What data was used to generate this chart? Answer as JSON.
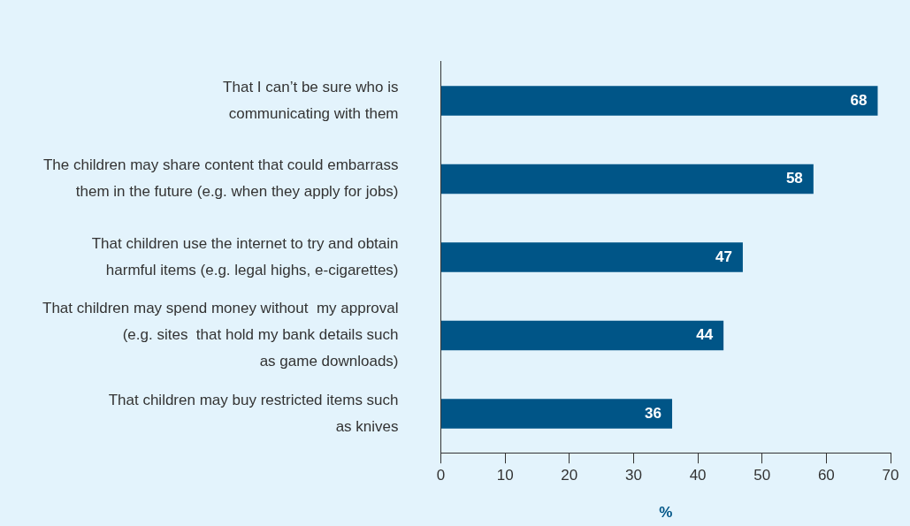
{
  "chart_data": {
    "type": "bar",
    "orientation": "horizontal",
    "xlabel": "%",
    "categories": [
      "That I can’t be sure who is\ncommunicating with them",
      "The children may share content that could embarrass\nthem in the future (e.g. when they apply for jobs)",
      "That children use the internet to try and obtain\nharmful items (e.g. legal highs, e-cigarettes)",
      "That children may spend money without  my approval\n(e.g. sites  that hold my bank details such\nas game downloads)",
      "That children may buy restricted items such\nas knives"
    ],
    "values": [
      68,
      58,
      47,
      44,
      36
    ],
    "color": "#005587",
    "xlim": [
      0,
      70
    ],
    "xticks": [
      0,
      10,
      20,
      30,
      40,
      50,
      60,
      70
    ],
    "grid": false,
    "legend": false,
    "data_labels": true
  }
}
